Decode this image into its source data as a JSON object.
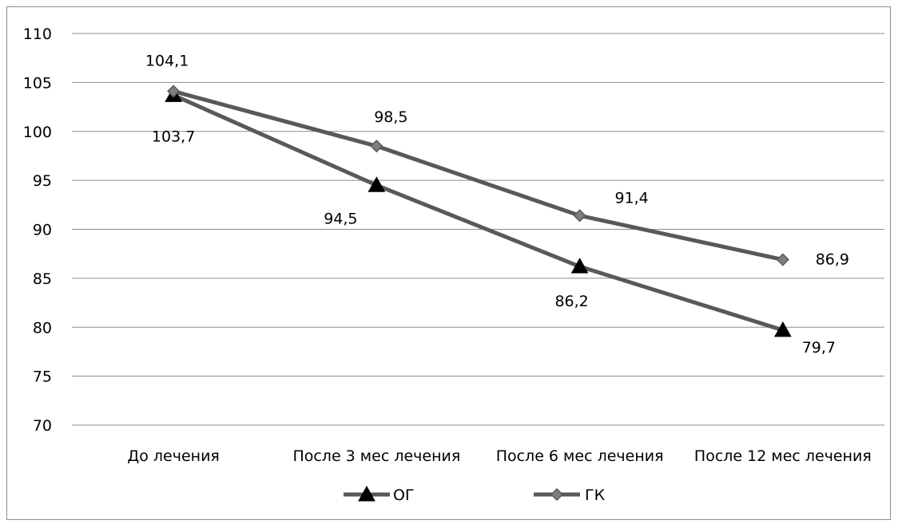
{
  "chart_data": {
    "type": "line",
    "categories": [
      "До лечения",
      "После 3 мес лечения",
      "После 6 мес лечения",
      "После 12 мес лечения"
    ],
    "series": [
      {
        "name": "ОГ",
        "values": [
          103.7,
          94.5,
          86.2,
          79.7
        ],
        "value_labels": [
          "103,7",
          "94,5",
          "86,2",
          "79,7"
        ],
        "marker": "triangle",
        "color": "#595959"
      },
      {
        "name": "ГК",
        "values": [
          104.1,
          98.5,
          91.4,
          86.9
        ],
        "value_labels": [
          "104,1",
          "98,5",
          "91,4",
          "86,9"
        ],
        "marker": "diamond",
        "color": "#595959"
      }
    ],
    "ylim": [
      70,
      110
    ],
    "yticks": [
      70,
      75,
      80,
      85,
      90,
      95,
      100,
      105,
      110
    ],
    "ytick_labels": [
      "70",
      "75",
      "80",
      "85",
      "90",
      "95",
      "100",
      "105",
      "110"
    ],
    "grid": true,
    "legend_position": "bottom",
    "title": "",
    "xlabel": "",
    "ylabel": ""
  }
}
